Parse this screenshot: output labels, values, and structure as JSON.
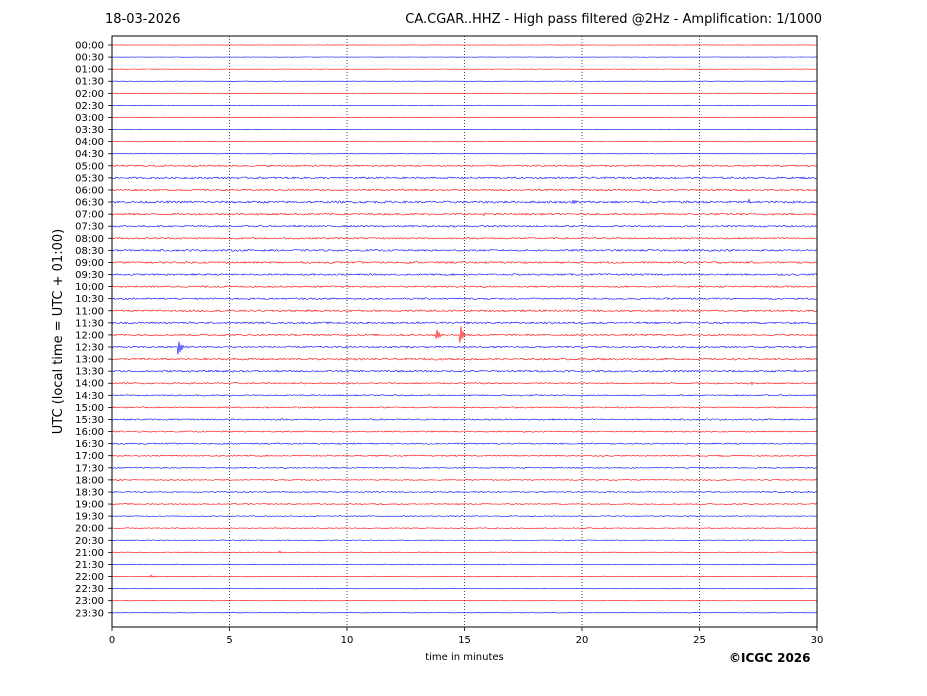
{
  "header": {
    "date": "18-03-2026",
    "title": "CA.CGAR..HHZ - High pass filtered @2Hz - Amplification: 1/1000"
  },
  "footer": {
    "copyright": "©ICGC 2026"
  },
  "chart_data": {
    "type": "line",
    "title": "CA.CGAR..HHZ - High pass filtered @2Hz - Amplification: 1/1000",
    "xlabel": "time in minutes",
    "ylabel": "UTC (local time = UTC + 01:00)",
    "xlim": [
      0,
      30
    ],
    "x_ticks": [
      0,
      5,
      10,
      15,
      20,
      25,
      30
    ],
    "vertical_grid": [
      5,
      10,
      15,
      20,
      25
    ],
    "grid_style": "dotted",
    "rows": [
      "00:00",
      "00:30",
      "01:00",
      "01:30",
      "02:00",
      "02:30",
      "03:00",
      "03:30",
      "04:00",
      "04:30",
      "05:00",
      "05:30",
      "06:00",
      "06:30",
      "07:00",
      "07:30",
      "08:00",
      "08:30",
      "09:00",
      "09:30",
      "10:00",
      "10:30",
      "11:00",
      "11:30",
      "12:00",
      "12:30",
      "13:00",
      "13:30",
      "14:00",
      "14:30",
      "15:00",
      "15:30",
      "16:00",
      "16:30",
      "17:00",
      "17:30",
      "18:00",
      "18:30",
      "19:00",
      "19:30",
      "20:00",
      "20:30",
      "21:00",
      "21:30",
      "22:00",
      "22:30",
      "23:00",
      "23:30"
    ],
    "row_colors": [
      "#ff0000",
      "#0000ff"
    ],
    "noise_levels": [
      0.2,
      0.2,
      0.2,
      0.2,
      0.2,
      0.2,
      0.2,
      0.2,
      0.2,
      0.2,
      0.9,
      1.0,
      0.9,
      1.2,
      1.0,
      0.9,
      0.9,
      1.0,
      1.0,
      0.9,
      0.9,
      0.9,
      1.0,
      1.0,
      0.9,
      0.9,
      1.0,
      1.0,
      0.8,
      0.7,
      0.7,
      0.8,
      0.7,
      0.7,
      0.7,
      0.6,
      0.6,
      0.6,
      0.6,
      0.5,
      0.5,
      0.4,
      0.4,
      0.4,
      0.4,
      0.3,
      0.2,
      0.2
    ],
    "events": [
      {
        "row": "06:30",
        "minute": 19.6,
        "amplitude": 2
      },
      {
        "row": "06:30",
        "minute": 27.1,
        "amplitude": 3
      },
      {
        "row": "07:00",
        "minute": 15.8,
        "amplitude": 2
      },
      {
        "row": "12:00",
        "minute": 13.8,
        "amplitude": 8
      },
      {
        "row": "12:00",
        "minute": 14.8,
        "amplitude": 14
      },
      {
        "row": "12:30",
        "minute": 2.8,
        "amplitude": 12
      },
      {
        "row": "13:30",
        "minute": 29.0,
        "amplitude": 2
      },
      {
        "row": "14:00",
        "minute": 27.2,
        "amplitude": 2
      },
      {
        "row": "17:00",
        "minute": 25.8,
        "amplitude": 2
      },
      {
        "row": "21:00",
        "minute": 7.1,
        "amplitude": 2
      },
      {
        "row": "22:00",
        "minute": 1.6,
        "amplitude": 2
      }
    ]
  }
}
